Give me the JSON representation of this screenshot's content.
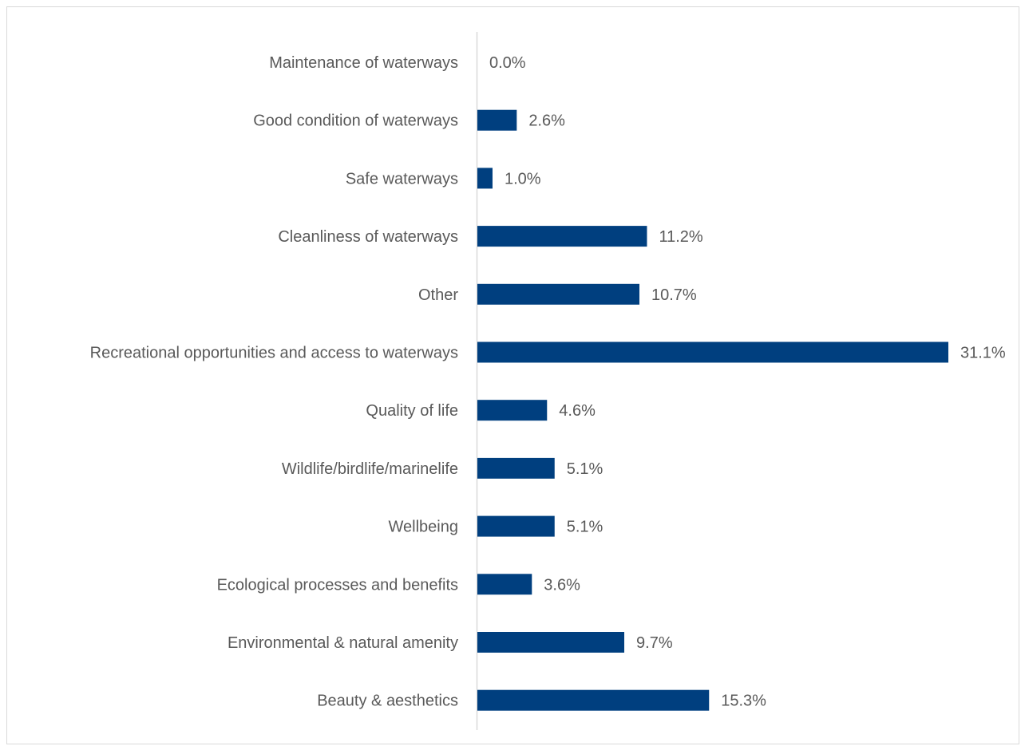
{
  "chart_data": {
    "type": "bar",
    "orientation": "horizontal",
    "categories": [
      "Maintenance of waterways",
      "Good condition of waterways",
      "Safe waterways",
      "Cleanliness of waterways",
      "Other",
      "Recreational opportunities and access to waterways",
      "Quality of life",
      "Wildlife/birdlife/marinelife",
      "Wellbeing",
      "Ecological processes and benefits",
      "Environmental & natural amenity",
      "Beauty & aesthetics"
    ],
    "values": [
      0.0,
      2.6,
      1.0,
      11.2,
      10.7,
      31.1,
      4.6,
      5.1,
      5.1,
      3.6,
      9.7,
      15.3
    ],
    "value_labels": [
      "0.0%",
      "2.6%",
      "1.0%",
      "11.2%",
      "10.7%",
      "31.1%",
      "4.6%",
      "5.1%",
      "5.1%",
      "3.6%",
      "9.7%",
      "15.3%"
    ],
    "title": "",
    "xlabel": "",
    "ylabel": "",
    "xlim": [
      0,
      31.1
    ],
    "grid": false,
    "legend": "none",
    "bar_color": "#003f7f",
    "axis_color": "#d9d9d9",
    "text_color": "#595959"
  }
}
